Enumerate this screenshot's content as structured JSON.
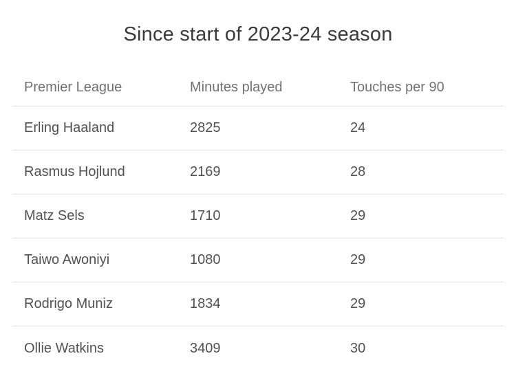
{
  "title": "Since start of 2023-24 season",
  "colors": {
    "background": "#ffffff",
    "title_text": "#3b3b3b",
    "header_text": "#717171",
    "cell_text": "#525252",
    "divider": "#e3e3e3"
  },
  "table": {
    "columns": [
      "Premier League",
      "Minutes played",
      "Touches per 90"
    ],
    "rows": [
      {
        "player": "Erling Haaland",
        "minutes": "2825",
        "touches": "24"
      },
      {
        "player": "Rasmus Hojlund",
        "minutes": "2169",
        "touches": "28"
      },
      {
        "player": "Matz Sels",
        "minutes": "1710",
        "touches": "29"
      },
      {
        "player": "Taiwo Awoniyi",
        "minutes": "1080",
        "touches": "29"
      },
      {
        "player": "Rodrigo Muniz",
        "minutes": "1834",
        "touches": "29"
      },
      {
        "player": "Ollie Watkins",
        "minutes": "3409",
        "touches": "30"
      }
    ]
  },
  "chart_data": {
    "type": "table",
    "title": "Since start of 2023-24 season",
    "columns": [
      "Premier League",
      "Minutes played",
      "Touches per 90"
    ],
    "rows": [
      [
        "Erling Haaland",
        2825,
        24
      ],
      [
        "Rasmus Hojlund",
        2169,
        28
      ],
      [
        "Matz Sels",
        1710,
        29
      ],
      [
        "Taiwo Awoniyi",
        1080,
        29
      ],
      [
        "Rodrigo Muniz",
        1834,
        29
      ],
      [
        "Ollie Watkins",
        3409,
        30
      ]
    ],
    "layout": "header row separated by light divider; horizontal dividers between rows; no divider after last row; all cells left-aligned; grid off; no legend"
  }
}
